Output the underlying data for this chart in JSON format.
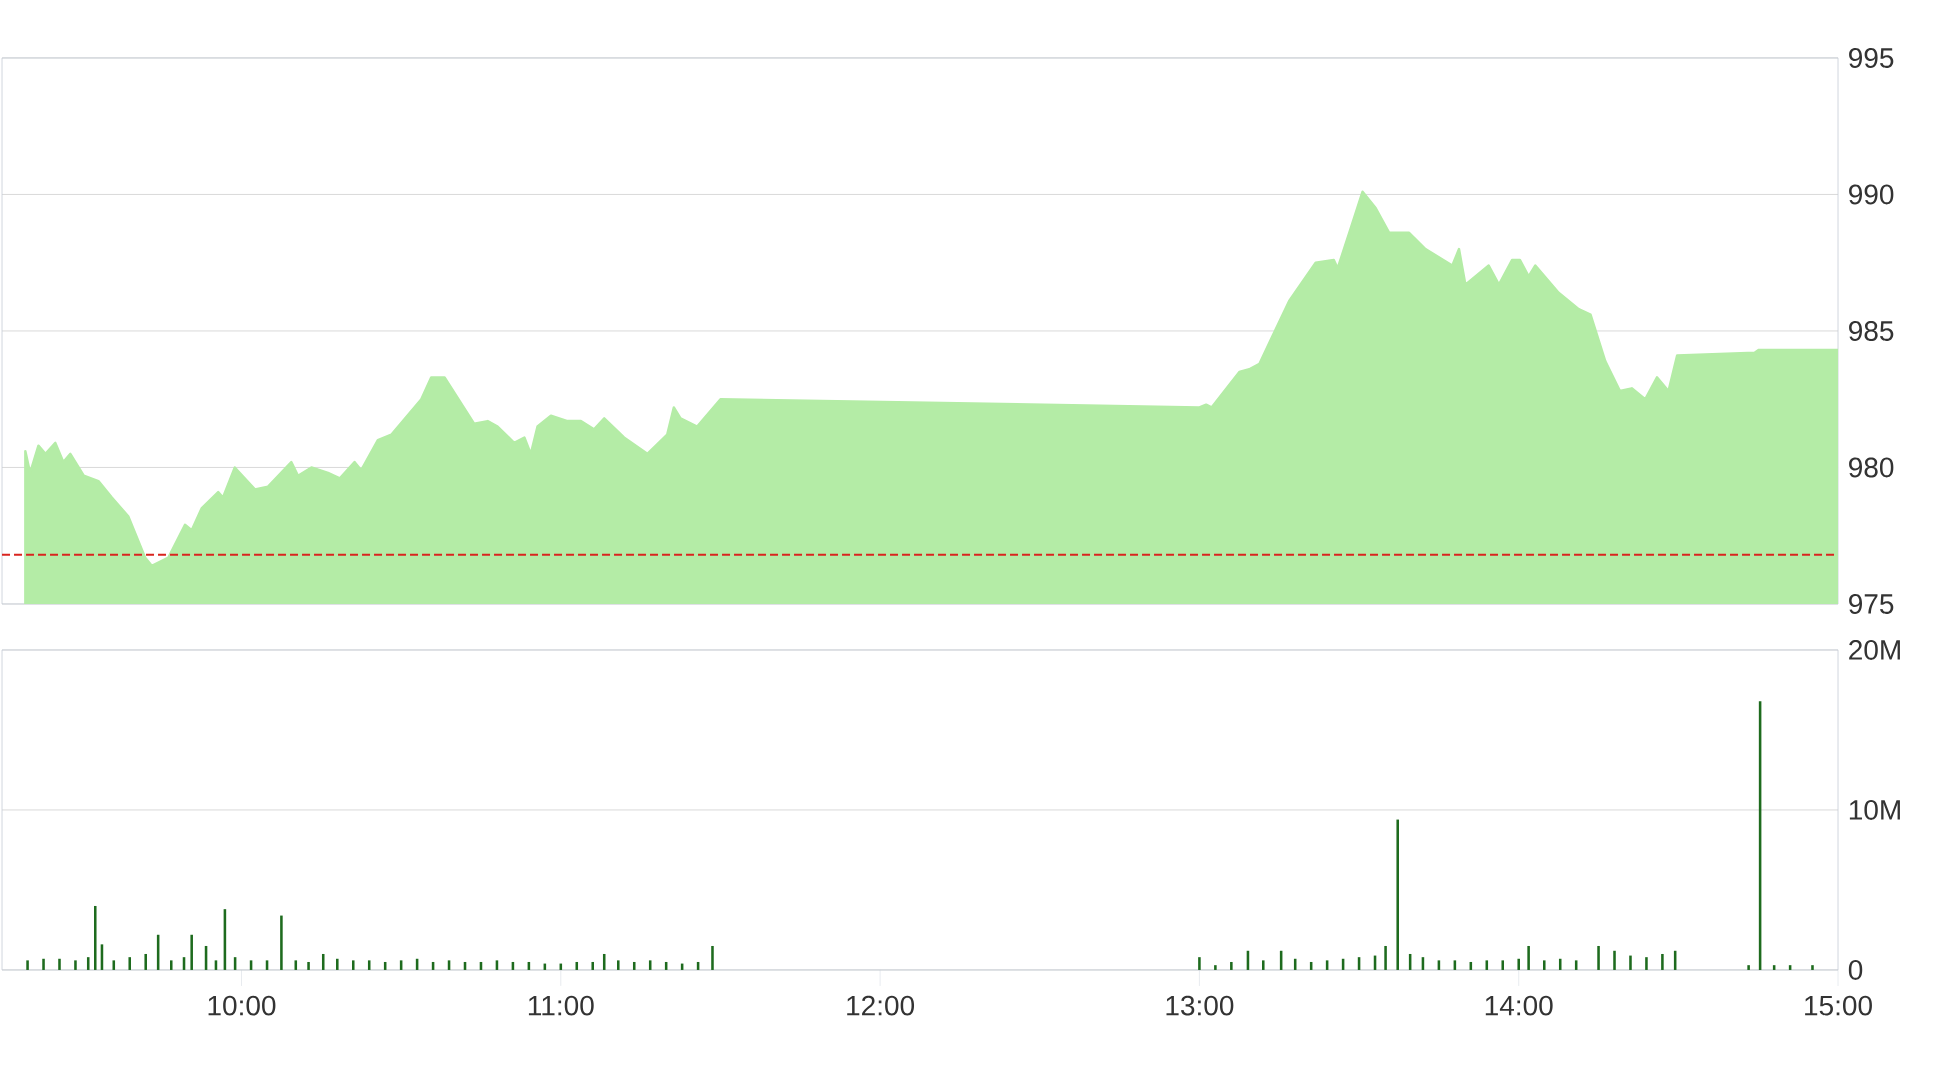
{
  "chart_data": [
    {
      "type": "area",
      "xlim": [
        9.25,
        15
      ],
      "ylim": [
        975,
        995
      ],
      "yticks": [
        975,
        980,
        985,
        990,
        995
      ],
      "grid": "y",
      "tick_labels": "y",
      "color": "#b4eca6",
      "x": [
        9.323,
        9.338,
        9.364,
        9.386,
        9.417,
        9.442,
        9.464,
        9.506,
        9.552,
        9.594,
        9.646,
        9.698,
        9.719,
        9.771,
        9.823,
        9.844,
        9.875,
        9.927,
        9.942,
        9.979,
        10.042,
        10.083,
        10.156,
        10.177,
        10.219,
        10.271,
        10.308,
        10.354,
        10.375,
        10.427,
        10.469,
        10.563,
        10.594,
        10.636,
        10.729,
        10.771,
        10.802,
        10.854,
        10.886,
        10.906,
        10.927,
        10.969,
        11.021,
        11.063,
        11.104,
        11.136,
        11.198,
        11.271,
        11.333,
        11.354,
        11.375,
        11.427,
        11.5,
        13.0,
        13.021,
        13.038,
        13.125,
        13.156,
        13.188,
        13.281,
        13.364,
        13.421,
        13.433,
        13.475,
        13.511,
        13.552,
        13.594,
        13.656,
        13.708,
        13.792,
        13.813,
        13.833,
        13.906,
        13.938,
        13.979,
        14.004,
        14.031,
        14.052,
        14.125,
        14.188,
        14.225,
        14.271,
        14.317,
        14.354,
        14.396,
        14.433,
        14.469,
        14.496,
        14.739,
        14.75,
        15.0
      ],
      "values": [
        980.6,
        979.8,
        980.8,
        980.5,
        980.9,
        980.2,
        980.5,
        979.7,
        979.5,
        978.9,
        978.2,
        976.7,
        976.4,
        976.7,
        977.9,
        977.7,
        978.5,
        979.1,
        978.9,
        980.0,
        979.2,
        979.3,
        980.2,
        979.7,
        980.0,
        979.8,
        979.6,
        980.2,
        979.9,
        981.0,
        981.2,
        982.5,
        983.3,
        983.3,
        981.6,
        981.7,
        981.5,
        980.9,
        981.1,
        980.5,
        981.5,
        981.9,
        981.7,
        981.7,
        981.4,
        981.8,
        981.1,
        980.5,
        981.2,
        982.2,
        981.8,
        981.5,
        982.5,
        982.2,
        982.3,
        982.2,
        983.5,
        983.6,
        983.8,
        986.1,
        987.5,
        987.6,
        987.3,
        988.8,
        990.1,
        989.5,
        988.6,
        988.6,
        988.0,
        987.4,
        988.0,
        986.7,
        987.4,
        986.7,
        987.6,
        987.6,
        987.0,
        987.4,
        986.4,
        985.8,
        985.6,
        983.9,
        982.8,
        982.9,
        982.5,
        983.3,
        982.8,
        984.1,
        984.2,
        984.3,
        984.3
      ],
      "ref_lines": [
        {
          "axis": "y",
          "value": 976.8,
          "color": "#d9241f",
          "line_style": "dashed"
        }
      ]
    },
    {
      "type": "bar",
      "xlim": [
        9.25,
        15
      ],
      "ylim": [
        0,
        20
      ],
      "grid": "y",
      "color": "#1e6b1e",
      "xticks": [
        {
          "value": 10,
          "label": "10:00"
        },
        {
          "value": 11,
          "label": "11:00"
        },
        {
          "value": 12,
          "label": "12:00"
        },
        {
          "value": 13,
          "label": "13:00"
        },
        {
          "value": 14,
          "label": "14:00"
        },
        {
          "value": 15,
          "label": "15:00"
        }
      ],
      "yticks": [
        0,
        {
          "value": 10,
          "label": "10M"
        },
        {
          "value": 20,
          "label": "20M"
        }
      ],
      "x": [
        9.33,
        9.38,
        9.43,
        9.48,
        9.52,
        9.542,
        9.563,
        9.6,
        9.65,
        9.7,
        9.739,
        9.78,
        9.82,
        9.844,
        9.889,
        9.92,
        9.948,
        9.98,
        10.03,
        10.08,
        10.125,
        10.17,
        10.21,
        10.256,
        10.3,
        10.35,
        10.4,
        10.45,
        10.5,
        10.55,
        10.6,
        10.65,
        10.7,
        10.75,
        10.8,
        10.85,
        10.9,
        10.95,
        11.0,
        11.05,
        11.1,
        11.136,
        11.18,
        11.23,
        11.28,
        11.33,
        11.38,
        11.43,
        11.475,
        13.0,
        13.05,
        13.1,
        13.152,
        13.2,
        13.256,
        13.3,
        13.35,
        13.4,
        13.45,
        13.5,
        13.55,
        13.583,
        13.621,
        13.66,
        13.7,
        13.75,
        13.8,
        13.85,
        13.9,
        13.95,
        14.0,
        14.031,
        14.08,
        14.13,
        14.18,
        14.25,
        14.3,
        14.35,
        14.4,
        14.45,
        14.49,
        14.72,
        14.756,
        14.8,
        14.85,
        14.92
      ],
      "values": [
        0.6,
        0.7,
        0.7,
        0.6,
        0.8,
        4.0,
        1.6,
        0.6,
        0.8,
        1.0,
        2.2,
        0.6,
        0.8,
        2.2,
        1.5,
        0.6,
        3.8,
        0.8,
        0.6,
        0.6,
        3.4,
        0.6,
        0.5,
        1.0,
        0.7,
        0.6,
        0.6,
        0.5,
        0.6,
        0.7,
        0.5,
        0.6,
        0.5,
        0.5,
        0.6,
        0.5,
        0.5,
        0.4,
        0.4,
        0.5,
        0.5,
        1.0,
        0.6,
        0.5,
        0.6,
        0.5,
        0.4,
        0.5,
        1.5,
        0.8,
        0.3,
        0.5,
        1.2,
        0.6,
        1.2,
        0.7,
        0.5,
        0.6,
        0.7,
        0.8,
        0.9,
        1.5,
        9.4,
        1.0,
        0.8,
        0.6,
        0.6,
        0.5,
        0.6,
        0.6,
        0.7,
        1.5,
        0.6,
        0.7,
        0.6,
        1.5,
        1.2,
        0.9,
        0.8,
        1.0,
        1.2,
        0.3,
        16.8,
        0.3,
        0.3,
        0.3
      ]
    }
  ]
}
